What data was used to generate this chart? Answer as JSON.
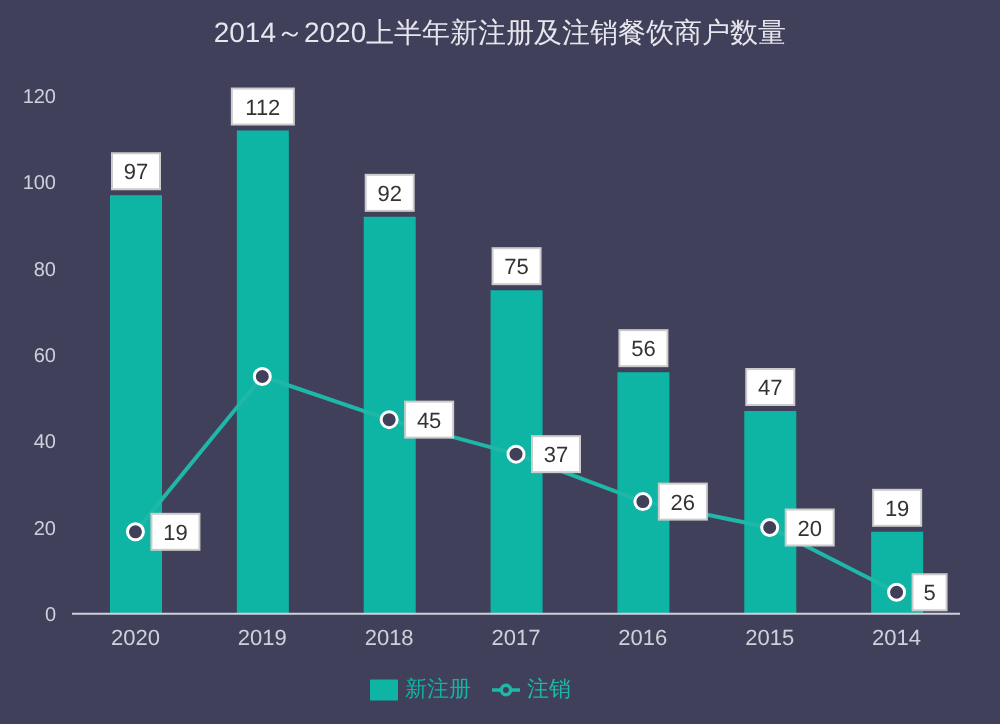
{
  "chart_data": {
    "type": "bar",
    "title": "2014～2020上半年新注册及注销餐饮商户数量",
    "categories": [
      "2020",
      "2019",
      "2018",
      "2017",
      "2016",
      "2015",
      "2014"
    ],
    "series": [
      {
        "name": "新注册",
        "color": "#0fb5a4",
        "values": [
          97,
          112,
          92,
          75,
          56,
          47,
          19
        ],
        "value_labels": [
          "97",
          "112",
          "92",
          "75",
          "56",
          "47",
          "19"
        ]
      },
      {
        "name": "注销",
        "type": "line",
        "color": "#1fb7a8",
        "values": [
          19,
          55,
          45,
          37,
          26,
          20,
          5
        ],
        "value_labels": [
          "19",
          null,
          "45",
          "37",
          "26",
          "20",
          "5"
        ]
      }
    ],
    "ylim": [
      0,
      120
    ],
    "yticks": [
      0,
      20,
      40,
      60,
      80,
      100,
      120
    ],
    "grid": false,
    "legend": "bottom",
    "marker": "circle"
  }
}
